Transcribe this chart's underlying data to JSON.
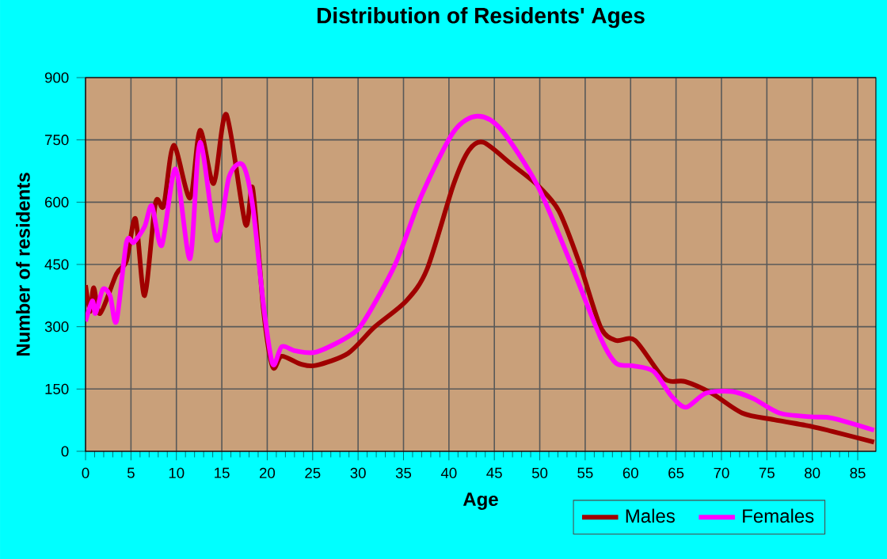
{
  "chart_data": {
    "type": "line",
    "title": "Distribution of Residents' Ages",
    "xlabel": "Age",
    "ylabel": "Number of residents",
    "xlim": [
      0,
      87
    ],
    "xticks": [
      0,
      5,
      10,
      15,
      20,
      25,
      30,
      35,
      40,
      45,
      50,
      55,
      60,
      65,
      70,
      75,
      80,
      85
    ],
    "ylim": [
      0,
      900
    ],
    "yticks": [
      0,
      150,
      300,
      450,
      600,
      750,
      900
    ],
    "grid": true,
    "legend": "bottom right",
    "line_style": "solid",
    "series": [
      {
        "name": "Males",
        "color": "#a00000",
        "x": [
          0,
          0.5,
          0.9,
          1.6,
          3.4,
          4.5,
          5.5,
          6.5,
          7.7,
          8.6,
          9.7,
          11.5,
          12.6,
          14.1,
          15.5,
          17.6,
          18.4,
          19.6,
          20.6,
          21.6,
          23.7,
          25.4,
          28.9,
          31.8,
          35.3,
          37.6,
          40.5,
          42.2,
          43.8,
          46.8,
          49.7,
          52.1,
          54.4,
          56.7,
          58.4,
          60.5,
          63.7,
          66,
          68.9,
          72.3,
          75.8,
          79.9,
          82.2,
          86.8
        ],
        "values": [
          400,
          337,
          394,
          332,
          427,
          458,
          560,
          375,
          598,
          591,
          737,
          610,
          773,
          645,
          811,
          547,
          633,
          337,
          203,
          229,
          210,
          207,
          236,
          299,
          362,
          439,
          642,
          725,
          744,
          693,
          642,
          579,
          451,
          299,
          267,
          267,
          175,
          168,
          140,
          92,
          76,
          60,
          48,
          22
        ]
      },
      {
        "name": "Females",
        "color": "#ff00ff",
        "x": [
          0,
          0.75,
          1.1,
          1.9,
          2.7,
          3.4,
          4.5,
          5.3,
          6.5,
          7.3,
          8.4,
          9.9,
          11.5,
          12.6,
          14.4,
          15.8,
          17.3,
          18.4,
          19.6,
          20.6,
          21.6,
          23.1,
          25.4,
          28.9,
          30.6,
          34.1,
          37,
          40.5,
          43.1,
          45.7,
          49.7,
          53.2,
          56.7,
          58.4,
          60.2,
          62.5,
          64.5,
          66.1,
          68.3,
          71.2,
          73.5,
          76.4,
          79.9,
          82.2,
          86.8
        ],
        "values": [
          313,
          362,
          332,
          390,
          375,
          313,
          503,
          503,
          541,
          591,
          496,
          680,
          464,
          744,
          508,
          661,
          690,
          591,
          350,
          210,
          252,
          242,
          239,
          276,
          312,
          451,
          617,
          769,
          807,
          776,
          642,
          464,
          273,
          212,
          206,
          193,
          133,
          106,
          140,
          144,
          127,
          92,
          83,
          80,
          51
        ]
      }
    ]
  }
}
